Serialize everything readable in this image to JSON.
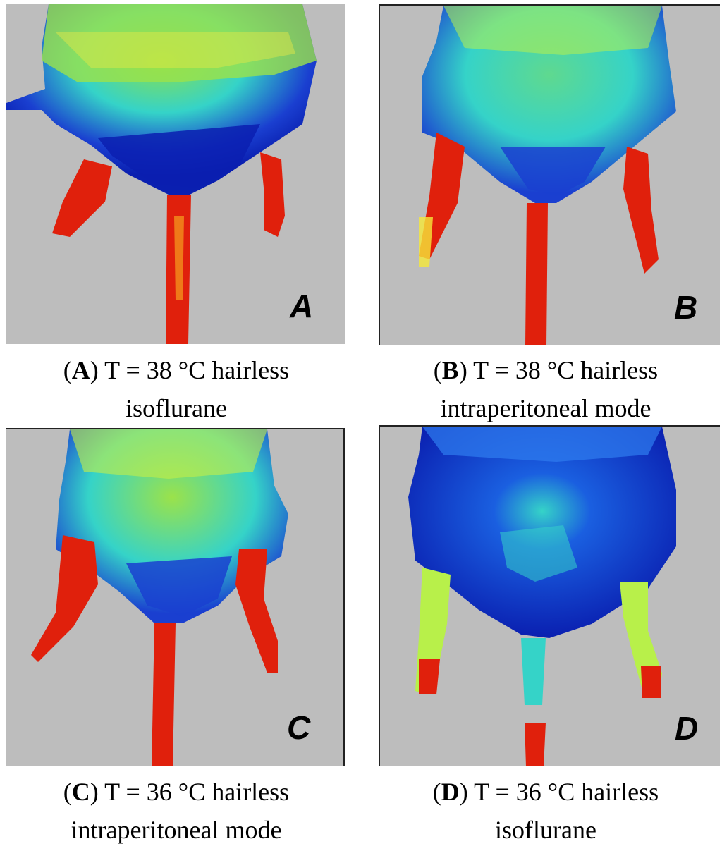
{
  "panels": [
    {
      "letter": "A",
      "caption": {
        "paren_open": "(",
        "letter": "A",
        "paren_close": ")",
        "line1": "T = 38 °C hairless",
        "line2": "isoflurane"
      }
    },
    {
      "letter": "B",
      "caption": {
        "paren_open": "(",
        "letter": "B",
        "paren_close": ")",
        "line1": "T = 38 °C hairless",
        "line2": "intraperitoneal mode"
      }
    },
    {
      "letter": "C",
      "caption": {
        "paren_open": "(",
        "letter": "C",
        "paren_close": ")",
        "line1": "T = 36 °C hairless",
        "line2": "intraperitoneal mode"
      }
    },
    {
      "letter": "D",
      "caption": {
        "paren_open": "(",
        "letter": "D",
        "paren_close": ")",
        "line1": "T = 36 °C hairless",
        "line2": "isoflurane"
      }
    }
  ],
  "colors": {
    "background": "#bdbdbd",
    "cold": "#0a1fb0",
    "cool": "#2f7df0",
    "mid": "#35d3c8",
    "warm": "#b8f04a",
    "hot_yellow": "#f5e83a",
    "hot_red": "#e0200c"
  }
}
